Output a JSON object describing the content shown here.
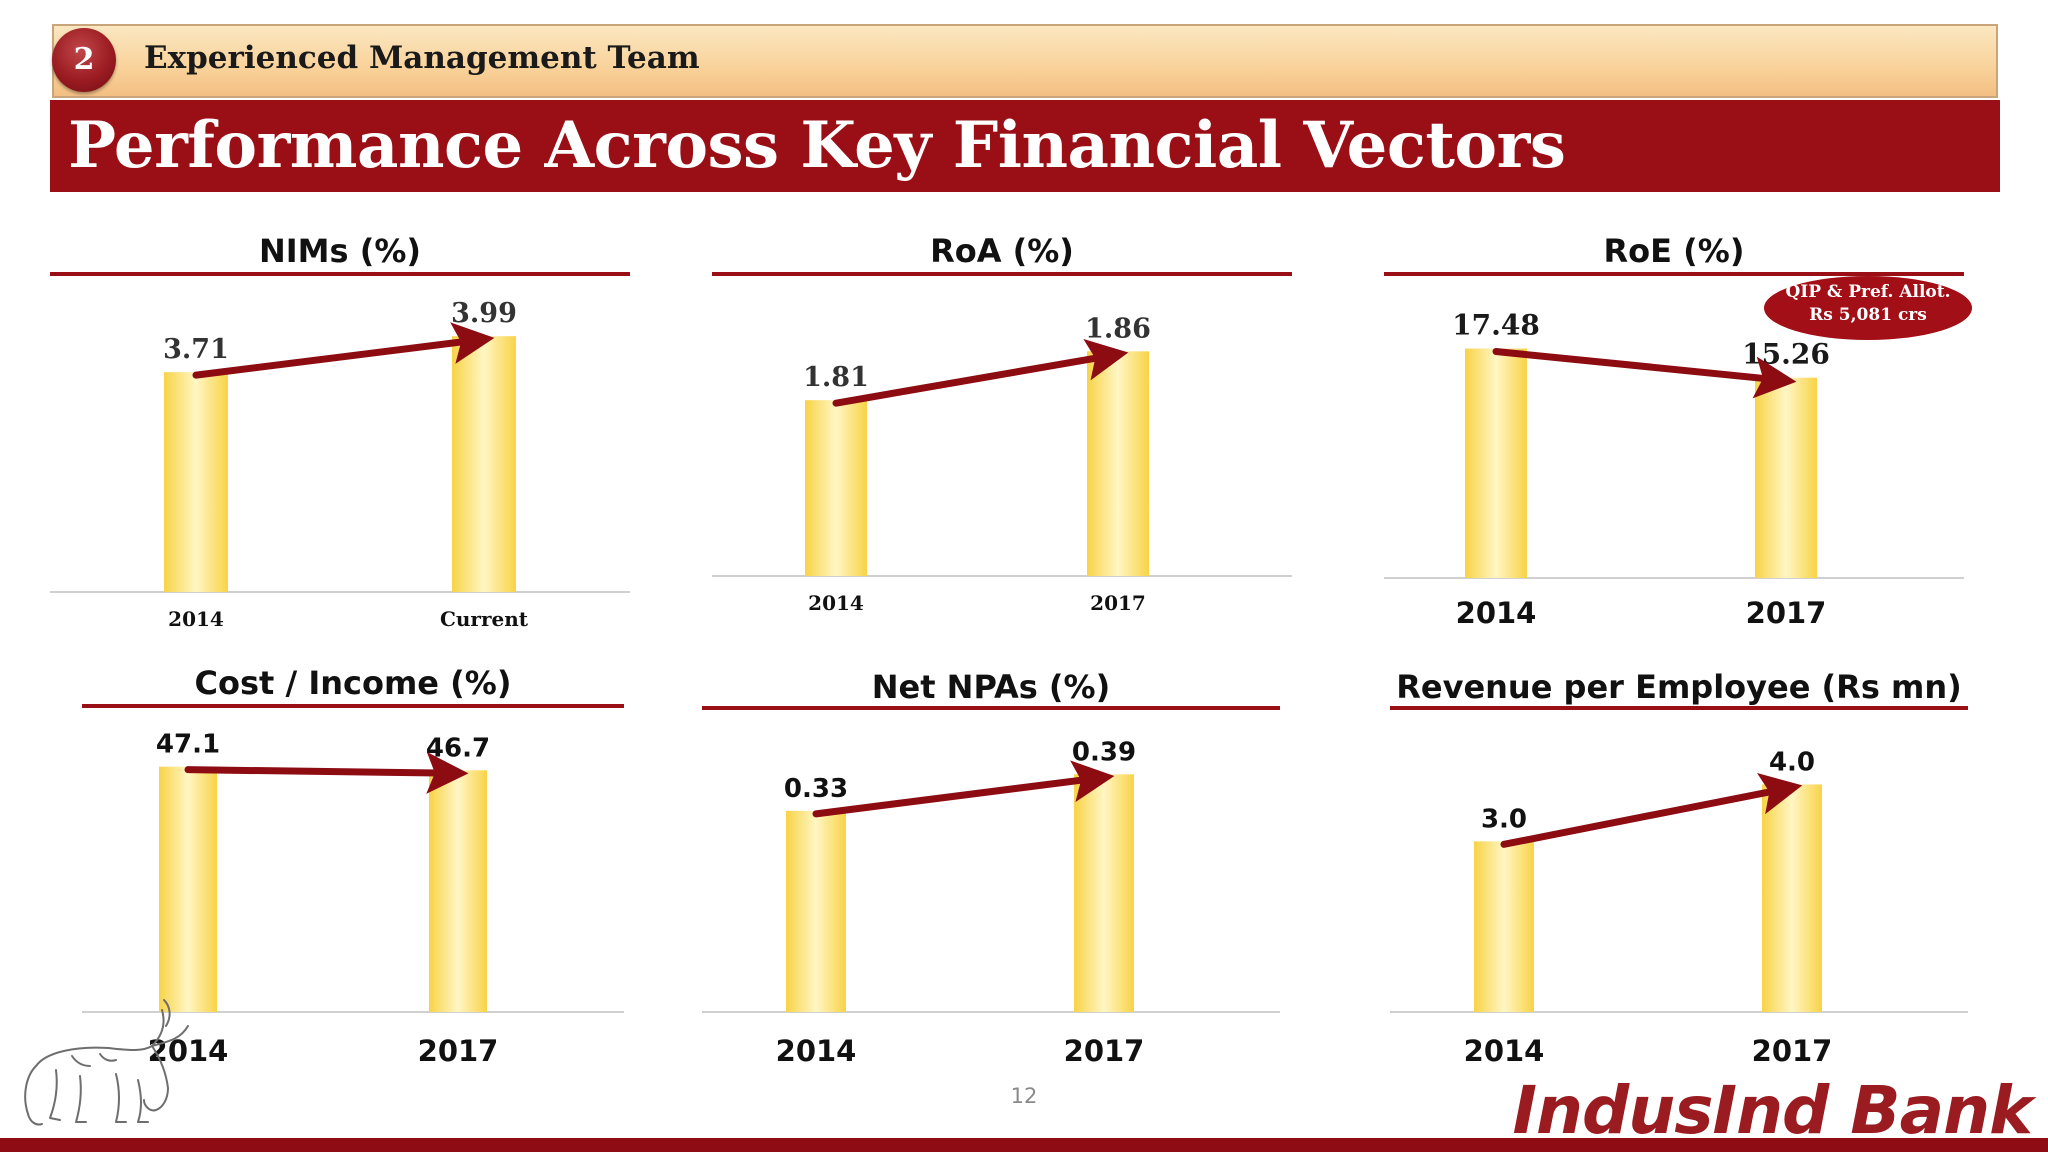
{
  "section": {
    "number": "2",
    "title": "Experienced Management Team"
  },
  "page_title": "Performance Across Key Financial Vectors",
  "colors": {
    "brand_red": "#9a0f16",
    "bar_gold": "#f8d347",
    "bar_highlight": "#fff6c4",
    "arrow": "#8c0c12"
  },
  "icons": {
    "logo": "bull-logo-icon"
  },
  "badge": {
    "line1": "QIP & Pref. Allot.",
    "line2": "Rs 5,081 crs"
  },
  "page_number": "12",
  "brand_name": "IndusInd Bank",
  "chart_data": [
    {
      "type": "bar",
      "title": "NIMs (%)",
      "categories": [
        "2014",
        "Current"
      ],
      "values": [
        3.71,
        3.99
      ],
      "value_labels": [
        "3.71",
        "3.99"
      ],
      "trend_arrow": true,
      "ylim": [
        2.0,
        4.1
      ],
      "grid": false,
      "legend": "none"
    },
    {
      "type": "bar",
      "title": "RoA (%)",
      "categories": [
        "2014",
        "2017"
      ],
      "values": [
        1.81,
        1.86
      ],
      "value_labels": [
        "1.81",
        "1.86"
      ],
      "trend_arrow": true,
      "ylim": [
        1.63,
        1.89
      ],
      "grid": false,
      "legend": "none"
    },
    {
      "type": "bar",
      "title": "RoE (%)",
      "categories": [
        "2014",
        "2017"
      ],
      "values": [
        17.48,
        15.26
      ],
      "value_labels": [
        "17.48",
        "15.26"
      ],
      "trend_arrow": true,
      "ylim": [
        0,
        19.5
      ],
      "grid": false,
      "legend": "none"
    },
    {
      "type": "bar",
      "title": "Cost / Income (%)",
      "categories": [
        "2014",
        "2017"
      ],
      "values": [
        47.1,
        46.7
      ],
      "value_labels": [
        "47.1",
        "46.7"
      ],
      "trend_arrow": true,
      "ylim": [
        20,
        48.5
      ],
      "grid": false,
      "legend": "none"
    },
    {
      "type": "bar",
      "title": "Net NPAs (%)",
      "categories": [
        "2014",
        "2017"
      ],
      "values": [
        0.33,
        0.39
      ],
      "value_labels": [
        "0.33",
        "0.39"
      ],
      "trend_arrow": true,
      "ylim": [
        0,
        0.42
      ],
      "grid": false,
      "legend": "none"
    },
    {
      "type": "bar",
      "title": "Revenue per Employee (Rs mn)",
      "categories": [
        "2014",
        "2017"
      ],
      "values": [
        3.0,
        4.0
      ],
      "value_labels": [
        "3.0",
        "4.0"
      ],
      "trend_arrow": true,
      "ylim": [
        0,
        4.5
      ],
      "grid": false,
      "legend": "none"
    }
  ]
}
